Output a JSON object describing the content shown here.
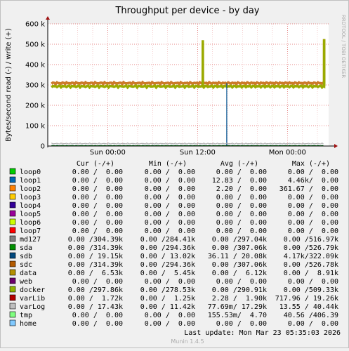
{
  "chart_data": {
    "type": "line",
    "title": "Throughput per device - by day",
    "ylabel": "Bytes/second read (-) / write (+)",
    "side_label": "RRDTOOL / TOBI OETIKER",
    "ylim": [
      0,
      600000
    ],
    "y_ticks": [
      {
        "v": 0,
        "label": "0"
      },
      {
        "v": 100000,
        "label": "100 k"
      },
      {
        "v": 200000,
        "label": "200 k"
      },
      {
        "v": 300000,
        "label": "300 k"
      },
      {
        "v": 400000,
        "label": "400 k"
      },
      {
        "v": 500000,
        "label": "500 k"
      },
      {
        "v": 600000,
        "label": "600 k"
      }
    ],
    "xlim_hours": [
      -8,
      29.5
    ],
    "x_ticks": [
      {
        "h": 0,
        "label": "Sun 00:00"
      },
      {
        "h": 12,
        "label": "Sun 12:00"
      },
      {
        "h": 24,
        "label": "Mon 00:00"
      }
    ],
    "series": [
      {
        "name": "md127",
        "color": "#cc7a28",
        "base": 309000,
        "amp": 5500,
        "spikes": [
          [
            12.7,
            505000
          ],
          [
            28.9,
            525000
          ]
        ]
      },
      {
        "name": "docker",
        "color": "#9aaa00",
        "base": 293000,
        "amp": 5500,
        "spikes": [
          [
            12.7,
            520000
          ],
          [
            28.9,
            525000
          ]
        ]
      },
      {
        "name": "sdb",
        "color": "#125c96",
        "base": 2000,
        "amp": 1500,
        "spikes": [
          [
            15.9,
            310000
          ]
        ]
      },
      {
        "name": "varLog",
        "color": "#b0b0b0",
        "base": 12000,
        "amp": 3000,
        "spikes": []
      },
      {
        "name": "sda",
        "color": "#007a00",
        "base": 1500,
        "amp": 800,
        "spikes": []
      }
    ],
    "legend_header": [
      "Cur (-/+)",
      "Min (-/+)",
      "Avg (-/+)",
      "Max (-/+)"
    ],
    "rows": [
      {
        "name": "loop0",
        "color": "#00cc00",
        "cur": "0.00 /  0.00",
        "min": "0.00 /  0.00",
        "avg": "0.00 /  0.00",
        "max": "0.00 /  0.00"
      },
      {
        "name": "loop1",
        "color": "#0066b3",
        "cur": "0.00 /  0.00",
        "min": "0.00 /  0.00",
        "avg": "12.83 /  0.00",
        "max": "4.46k/  0.00"
      },
      {
        "name": "loop2",
        "color": "#ff8000",
        "cur": "0.00 /  0.00",
        "min": "0.00 /  0.00",
        "avg": "2.20 /  0.00",
        "max": "361.67 /  0.00"
      },
      {
        "name": "loop3",
        "color": "#ffcc00",
        "cur": "0.00 /  0.00",
        "min": "0.00 /  0.00",
        "avg": "0.00 /  0.00",
        "max": "0.00 /  0.00"
      },
      {
        "name": "loop4",
        "color": "#330099",
        "cur": "0.00 /  0.00",
        "min": "0.00 /  0.00",
        "avg": "0.00 /  0.00",
        "max": "0.00 /  0.00"
      },
      {
        "name": "loop5",
        "color": "#990099",
        "cur": "0.00 /  0.00",
        "min": "0.00 /  0.00",
        "avg": "0.00 /  0.00",
        "max": "0.00 /  0.00"
      },
      {
        "name": "loop6",
        "color": "#ccff00",
        "cur": "0.00 /  0.00",
        "min": "0.00 /  0.00",
        "avg": "0.00 /  0.00",
        "max": "0.00 /  0.00"
      },
      {
        "name": "loop7",
        "color": "#ff0000",
        "cur": "0.00 /  0.00",
        "min": "0.00 /  0.00",
        "avg": "0.00 /  0.00",
        "max": "0.00 /  0.00"
      },
      {
        "name": "md127",
        "color": "#808080",
        "cur": "0.00 /304.39k",
        "min": "0.00 /284.41k",
        "avg": "0.00 /297.04k",
        "max": "0.00 /516.97k"
      },
      {
        "name": "sda",
        "color": "#008f00",
        "cur": "0.00 /314.39k",
        "min": "0.00 /294.36k",
        "avg": "0.00 /307.06k",
        "max": "0.00 /526.79k"
      },
      {
        "name": "sdb",
        "color": "#00487d",
        "cur": "0.00 / 19.15k",
        "min": "0.00 / 13.02k",
        "avg": "36.11 / 20.08k",
        "max": "4.17k/322.09k"
      },
      {
        "name": "sdc",
        "color": "#b35a00",
        "cur": "0.00 /314.39k",
        "min": "0.00 /294.36k",
        "avg": "0.00 /307.06k",
        "max": "0.00 /526.78k"
      },
      {
        "name": "data",
        "color": "#b38f00",
        "cur": "0.00 /  6.53k",
        "min": "0.00 /  5.45k",
        "avg": "0.00 /  6.12k",
        "max": "0.00 /  8.91k"
      },
      {
        "name": "web",
        "color": "#6b006b",
        "cur": "0.00 /  0.00",
        "min": "0.00 /  0.00",
        "avg": "0.00 /  0.00",
        "max": "0.00 /  0.00"
      },
      {
        "name": "docker",
        "color": "#8fb300",
        "cur": "0.00 /297.86k",
        "min": "0.00 /278.53k",
        "avg": "0.00 /290.91k",
        "max": "0.00 /509.33k"
      },
      {
        "name": "varLib",
        "color": "#b30000",
        "cur": "0.00 /  1.72k",
        "min": "0.00 /  1.25k",
        "avg": "2.28 /  1.90k",
        "max": "717.96 / 19.26k"
      },
      {
        "name": "varLog",
        "color": "#bebebe",
        "cur": "0.00 / 17.43k",
        "min": "0.00 / 11.42k",
        "avg": "77.69m/ 17.29k",
        "max": "13.55 / 40.44k"
      },
      {
        "name": "tmp",
        "color": "#80ff80",
        "cur": "0.00 /  0.00",
        "min": "0.00 /  0.00",
        "avg": "155.53m/  4.70",
        "max": "40.56 /406.39"
      },
      {
        "name": "home",
        "color": "#80c9ff",
        "cur": "0.00 /  0.00",
        "min": "0.00 /  0.00",
        "avg": "0.00 /  0.00",
        "max": "0.00 /  0.00"
      }
    ],
    "last_update": "Last update:  Mon Mar 23 05:35:03 2026",
    "footer": "Munin 1.4.5",
    "grid": true
  }
}
